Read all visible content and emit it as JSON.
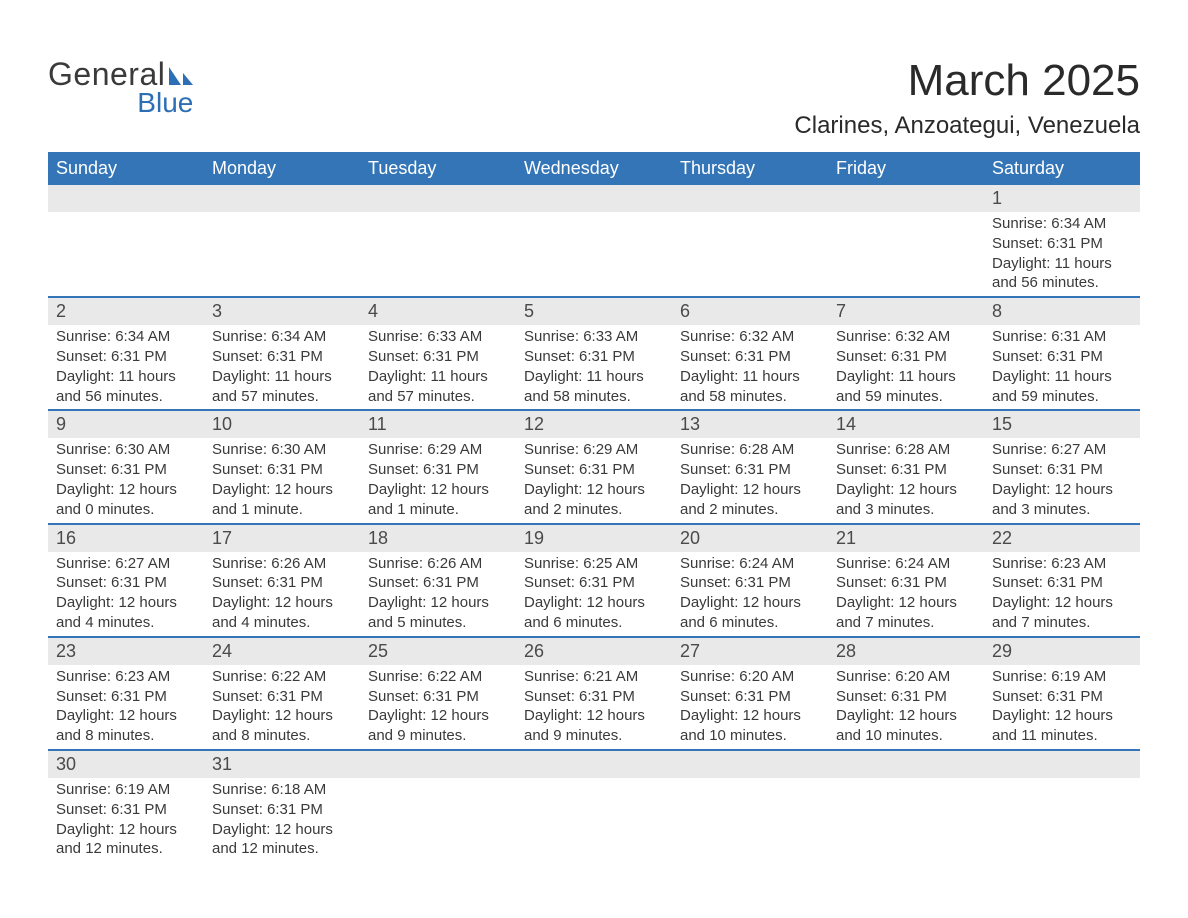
{
  "logo": {
    "line1": "General",
    "line2": "Blue"
  },
  "title": "March 2025",
  "location": "Clarines, Anzoategui, Venezuela",
  "colors": {
    "header_bg": "#3375b7",
    "header_text": "#ffffff",
    "daynum_bg": "#e9e9e9",
    "row_divider": "#3375b7",
    "body_text": "#3a3a3a",
    "page_bg": "#ffffff",
    "logo_blue": "#2d6fb5"
  },
  "typography": {
    "title_fontsize": 44,
    "location_fontsize": 24,
    "weekday_fontsize": 18,
    "daynum_fontsize": 18,
    "detail_fontsize": 15
  },
  "weekdays": [
    "Sunday",
    "Monday",
    "Tuesday",
    "Wednesday",
    "Thursday",
    "Friday",
    "Saturday"
  ],
  "weeks": [
    {
      "days": [
        null,
        null,
        null,
        null,
        null,
        null,
        {
          "n": "1",
          "sunrise": "Sunrise: 6:34 AM",
          "sunset": "Sunset: 6:31 PM",
          "daylight1": "Daylight: 11 hours",
          "daylight2": "and 56 minutes."
        }
      ]
    },
    {
      "days": [
        {
          "n": "2",
          "sunrise": "Sunrise: 6:34 AM",
          "sunset": "Sunset: 6:31 PM",
          "daylight1": "Daylight: 11 hours",
          "daylight2": "and 56 minutes."
        },
        {
          "n": "3",
          "sunrise": "Sunrise: 6:34 AM",
          "sunset": "Sunset: 6:31 PM",
          "daylight1": "Daylight: 11 hours",
          "daylight2": "and 57 minutes."
        },
        {
          "n": "4",
          "sunrise": "Sunrise: 6:33 AM",
          "sunset": "Sunset: 6:31 PM",
          "daylight1": "Daylight: 11 hours",
          "daylight2": "and 57 minutes."
        },
        {
          "n": "5",
          "sunrise": "Sunrise: 6:33 AM",
          "sunset": "Sunset: 6:31 PM",
          "daylight1": "Daylight: 11 hours",
          "daylight2": "and 58 minutes."
        },
        {
          "n": "6",
          "sunrise": "Sunrise: 6:32 AM",
          "sunset": "Sunset: 6:31 PM",
          "daylight1": "Daylight: 11 hours",
          "daylight2": "and 58 minutes."
        },
        {
          "n": "7",
          "sunrise": "Sunrise: 6:32 AM",
          "sunset": "Sunset: 6:31 PM",
          "daylight1": "Daylight: 11 hours",
          "daylight2": "and 59 minutes."
        },
        {
          "n": "8",
          "sunrise": "Sunrise: 6:31 AM",
          "sunset": "Sunset: 6:31 PM",
          "daylight1": "Daylight: 11 hours",
          "daylight2": "and 59 minutes."
        }
      ]
    },
    {
      "days": [
        {
          "n": "9",
          "sunrise": "Sunrise: 6:30 AM",
          "sunset": "Sunset: 6:31 PM",
          "daylight1": "Daylight: 12 hours",
          "daylight2": "and 0 minutes."
        },
        {
          "n": "10",
          "sunrise": "Sunrise: 6:30 AM",
          "sunset": "Sunset: 6:31 PM",
          "daylight1": "Daylight: 12 hours",
          "daylight2": "and 1 minute."
        },
        {
          "n": "11",
          "sunrise": "Sunrise: 6:29 AM",
          "sunset": "Sunset: 6:31 PM",
          "daylight1": "Daylight: 12 hours",
          "daylight2": "and 1 minute."
        },
        {
          "n": "12",
          "sunrise": "Sunrise: 6:29 AM",
          "sunset": "Sunset: 6:31 PM",
          "daylight1": "Daylight: 12 hours",
          "daylight2": "and 2 minutes."
        },
        {
          "n": "13",
          "sunrise": "Sunrise: 6:28 AM",
          "sunset": "Sunset: 6:31 PM",
          "daylight1": "Daylight: 12 hours",
          "daylight2": "and 2 minutes."
        },
        {
          "n": "14",
          "sunrise": "Sunrise: 6:28 AM",
          "sunset": "Sunset: 6:31 PM",
          "daylight1": "Daylight: 12 hours",
          "daylight2": "and 3 minutes."
        },
        {
          "n": "15",
          "sunrise": "Sunrise: 6:27 AM",
          "sunset": "Sunset: 6:31 PM",
          "daylight1": "Daylight: 12 hours",
          "daylight2": "and 3 minutes."
        }
      ]
    },
    {
      "days": [
        {
          "n": "16",
          "sunrise": "Sunrise: 6:27 AM",
          "sunset": "Sunset: 6:31 PM",
          "daylight1": "Daylight: 12 hours",
          "daylight2": "and 4 minutes."
        },
        {
          "n": "17",
          "sunrise": "Sunrise: 6:26 AM",
          "sunset": "Sunset: 6:31 PM",
          "daylight1": "Daylight: 12 hours",
          "daylight2": "and 4 minutes."
        },
        {
          "n": "18",
          "sunrise": "Sunrise: 6:26 AM",
          "sunset": "Sunset: 6:31 PM",
          "daylight1": "Daylight: 12 hours",
          "daylight2": "and 5 minutes."
        },
        {
          "n": "19",
          "sunrise": "Sunrise: 6:25 AM",
          "sunset": "Sunset: 6:31 PM",
          "daylight1": "Daylight: 12 hours",
          "daylight2": "and 6 minutes."
        },
        {
          "n": "20",
          "sunrise": "Sunrise: 6:24 AM",
          "sunset": "Sunset: 6:31 PM",
          "daylight1": "Daylight: 12 hours",
          "daylight2": "and 6 minutes."
        },
        {
          "n": "21",
          "sunrise": "Sunrise: 6:24 AM",
          "sunset": "Sunset: 6:31 PM",
          "daylight1": "Daylight: 12 hours",
          "daylight2": "and 7 minutes."
        },
        {
          "n": "22",
          "sunrise": "Sunrise: 6:23 AM",
          "sunset": "Sunset: 6:31 PM",
          "daylight1": "Daylight: 12 hours",
          "daylight2": "and 7 minutes."
        }
      ]
    },
    {
      "days": [
        {
          "n": "23",
          "sunrise": "Sunrise: 6:23 AM",
          "sunset": "Sunset: 6:31 PM",
          "daylight1": "Daylight: 12 hours",
          "daylight2": "and 8 minutes."
        },
        {
          "n": "24",
          "sunrise": "Sunrise: 6:22 AM",
          "sunset": "Sunset: 6:31 PM",
          "daylight1": "Daylight: 12 hours",
          "daylight2": "and 8 minutes."
        },
        {
          "n": "25",
          "sunrise": "Sunrise: 6:22 AM",
          "sunset": "Sunset: 6:31 PM",
          "daylight1": "Daylight: 12 hours",
          "daylight2": "and 9 minutes."
        },
        {
          "n": "26",
          "sunrise": "Sunrise: 6:21 AM",
          "sunset": "Sunset: 6:31 PM",
          "daylight1": "Daylight: 12 hours",
          "daylight2": "and 9 minutes."
        },
        {
          "n": "27",
          "sunrise": "Sunrise: 6:20 AM",
          "sunset": "Sunset: 6:31 PM",
          "daylight1": "Daylight: 12 hours",
          "daylight2": "and 10 minutes."
        },
        {
          "n": "28",
          "sunrise": "Sunrise: 6:20 AM",
          "sunset": "Sunset: 6:31 PM",
          "daylight1": "Daylight: 12 hours",
          "daylight2": "and 10 minutes."
        },
        {
          "n": "29",
          "sunrise": "Sunrise: 6:19 AM",
          "sunset": "Sunset: 6:31 PM",
          "daylight1": "Daylight: 12 hours",
          "daylight2": "and 11 minutes."
        }
      ]
    },
    {
      "days": [
        {
          "n": "30",
          "sunrise": "Sunrise: 6:19 AM",
          "sunset": "Sunset: 6:31 PM",
          "daylight1": "Daylight: 12 hours",
          "daylight2": "and 12 minutes."
        },
        {
          "n": "31",
          "sunrise": "Sunrise: 6:18 AM",
          "sunset": "Sunset: 6:31 PM",
          "daylight1": "Daylight: 12 hours",
          "daylight2": "and 12 minutes."
        },
        null,
        null,
        null,
        null,
        null
      ]
    }
  ]
}
